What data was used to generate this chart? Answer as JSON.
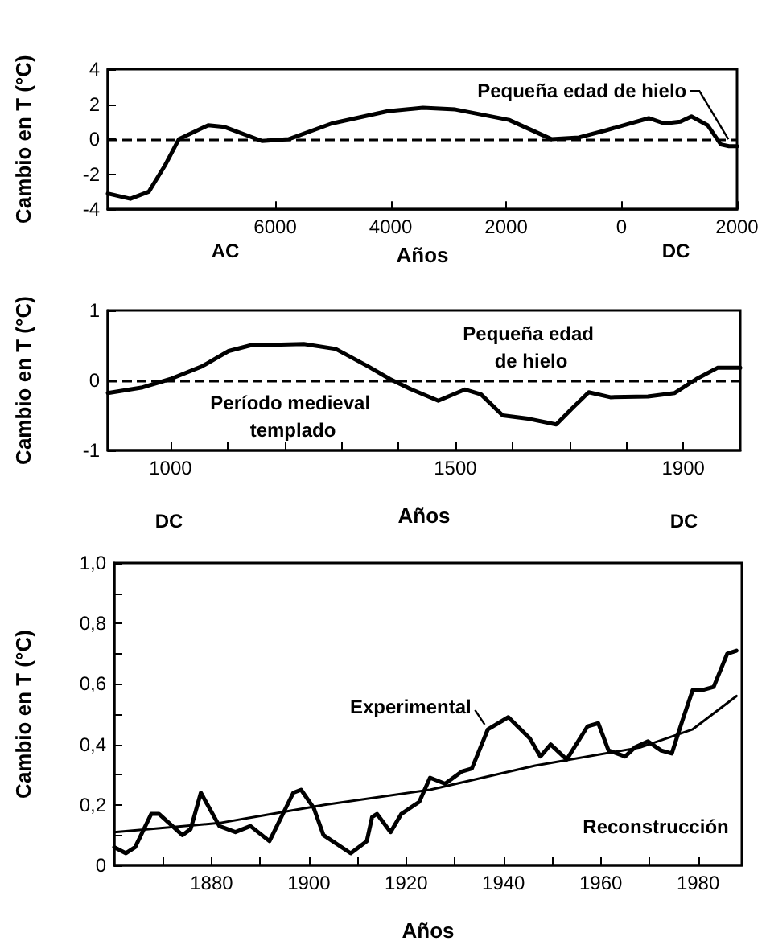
{
  "chart_data": [
    {
      "type": "line",
      "xlabel": "Años",
      "ylabel": "Cambio en T (°C)",
      "xlim": [
        -8900,
        2000
      ],
      "ylim": [
        -4,
        4
      ],
      "xticks": [
        {
          "value": -6000,
          "label": "6000"
        },
        {
          "value": -4000,
          "label": "4000"
        },
        {
          "value": -2000,
          "label": "2000"
        },
        0,
        2000
      ],
      "yticks": [
        -4,
        -2,
        0,
        2,
        4
      ],
      "ref_lines": [
        {
          "axis": "y",
          "value": 0,
          "color": "#000000",
          "line_style": "dashed"
        }
      ],
      "annotations": [
        "AC",
        "DC",
        {
          "text": "Pequeña edad de hielo",
          "x": 1850,
          "y": 0
        }
      ],
      "series": [
        {
          "color": "#000000",
          "x": [
            -8900,
            -8510,
            -8190,
            -7910,
            -7670,
            -7160,
            -6880,
            -6230,
            -5770,
            -5020,
            -4050,
            -3440,
            -2880,
            -1950,
            -1210,
            -740,
            -280,
            470,
            740,
            1020,
            1210,
            1490,
            1720,
            1860,
            2000
          ],
          "values": [
            -3.1,
            -3.4,
            -3.0,
            -1.5,
            0,
            0.8,
            0.7,
            -0.1,
            0,
            0.9,
            1.6,
            1.8,
            1.7,
            1.1,
            0,
            0.1,
            0.5,
            1.2,
            0.9,
            1.0,
            1.3,
            0.8,
            -0.3,
            -0.4,
            -0.4
          ]
        }
      ]
    },
    {
      "type": "line",
      "xlabel": "Años",
      "ylabel": "Cambio en T (°C)",
      "xlim": [
        890,
        2000
      ],
      "ylim": [
        -1,
        1
      ],
      "xticks": [
        1000,
        {
          "value": 1100,
          "label": null
        },
        {
          "value": 1200,
          "label": null
        },
        {
          "value": 1300,
          "label": null
        },
        {
          "value": 1400,
          "label": null
        },
        1500,
        {
          "value": 1600,
          "label": null
        },
        {
          "value": 1700,
          "label": null
        },
        {
          "value": 1800,
          "label": null
        },
        1900
      ],
      "yticks": [
        -1,
        0,
        1
      ],
      "ref_lines": [
        {
          "axis": "y",
          "value": 0,
          "color": "#000000",
          "line_style": "dashed"
        }
      ],
      "annotations": [
        "Pequeña edad de hielo",
        "Período medieval templado",
        "DC",
        "DC"
      ],
      "series": [
        {
          "color": "#000000",
          "x": [
            890,
            951,
            1000,
            1055,
            1102,
            1140,
            1234,
            1290,
            1347,
            1385,
            1423,
            1470,
            1517,
            1545,
            1583,
            1630,
            1677,
            1706,
            1734,
            1772,
            1838,
            1885,
            1923,
            1960,
            2000
          ],
          "values": [
            -0.18,
            -0.1,
            0.02,
            0.2,
            0.42,
            0.5,
            0.52,
            0.45,
            0.2,
            0.02,
            -0.13,
            -0.29,
            -0.13,
            -0.2,
            -0.5,
            -0.55,
            -0.63,
            -0.39,
            -0.17,
            -0.24,
            -0.23,
            -0.18,
            0.02,
            0.18,
            0.18
          ]
        }
      ]
    },
    {
      "type": "line",
      "xlabel": "Años",
      "ylabel": "Cambio en T (°C)",
      "xlim": [
        1860,
        1989
      ],
      "ylim": [
        0,
        1
      ],
      "xticks": [
        {
          "value": 1870,
          "label": null
        },
        1880,
        {
          "value": 1890,
          "label": null
        },
        1900,
        {
          "value": 1910,
          "label": null
        },
        1920,
        {
          "value": 1930,
          "label": null
        },
        1940,
        {
          "value": 1950,
          "label": null
        },
        1960,
        {
          "value": 1970,
          "label": null
        },
        1980
      ],
      "yticks": [
        0,
        {
          "value": 0.1,
          "label": null
        },
        {
          "value": 0.2,
          "label": "0,2"
        },
        {
          "value": 0.3,
          "label": null
        },
        {
          "value": 0.4,
          "label": "0,4"
        },
        {
          "value": 0.5,
          "label": null
        },
        {
          "value": 0.6,
          "label": "0,6"
        },
        {
          "value": 0.7,
          "label": null
        },
        {
          "value": 0.8,
          "label": "0,8"
        },
        {
          "value": 0.9,
          "label": null
        },
        {
          "value": 1,
          "label": "1,0"
        }
      ],
      "series": [
        {
          "name": "Experimental",
          "color": "#000000",
          "x": [
            1860,
            1862.4,
            1864.3,
            1867.6,
            1869.2,
            1874,
            1875.7,
            1877.8,
            1881.6,
            1884.9,
            1888,
            1891.9,
            1896.8,
            1898.4,
            1901,
            1903,
            1908.6,
            1911.9,
            1913,
            1914,
            1916.8,
            1919,
            1922.7,
            1924.9,
            1928,
            1931.4,
            1933.5,
            1936.8,
            1941,
            1945.4,
            1947.6,
            1949.7,
            1953,
            1957.3,
            1959.5,
            1961.6,
            1965,
            1967,
            1969.7,
            1972.4,
            1974.6,
            1976.8,
            1978.9,
            1981,
            1983.2,
            1986,
            1987.9
          ],
          "values": [
            0.06,
            0.04,
            0.06,
            0.17,
            0.17,
            0.1,
            0.12,
            0.24,
            0.13,
            0.11,
            0.13,
            0.08,
            0.24,
            0.25,
            0.19,
            0.1,
            0.04,
            0.08,
            0.16,
            0.17,
            0.11,
            0.17,
            0.21,
            0.29,
            0.27,
            0.31,
            0.32,
            0.45,
            0.49,
            0.42,
            0.36,
            0.4,
            0.35,
            0.46,
            0.47,
            0.38,
            0.36,
            0.39,
            0.41,
            0.38,
            0.37,
            0.48,
            0.58,
            0.58,
            0.59,
            0.7,
            0.71
          ]
        },
        {
          "name": "Reconstrucción",
          "color": "#000000",
          "x": [
            1860,
            1881.6,
            1903.2,
            1924.9,
            1946.5,
            1968.1,
            1978.9,
            1987.9
          ],
          "values": [
            0.11,
            0.14,
            0.2,
            0.25,
            0.33,
            0.39,
            0.45,
            0.56
          ]
        }
      ]
    }
  ]
}
